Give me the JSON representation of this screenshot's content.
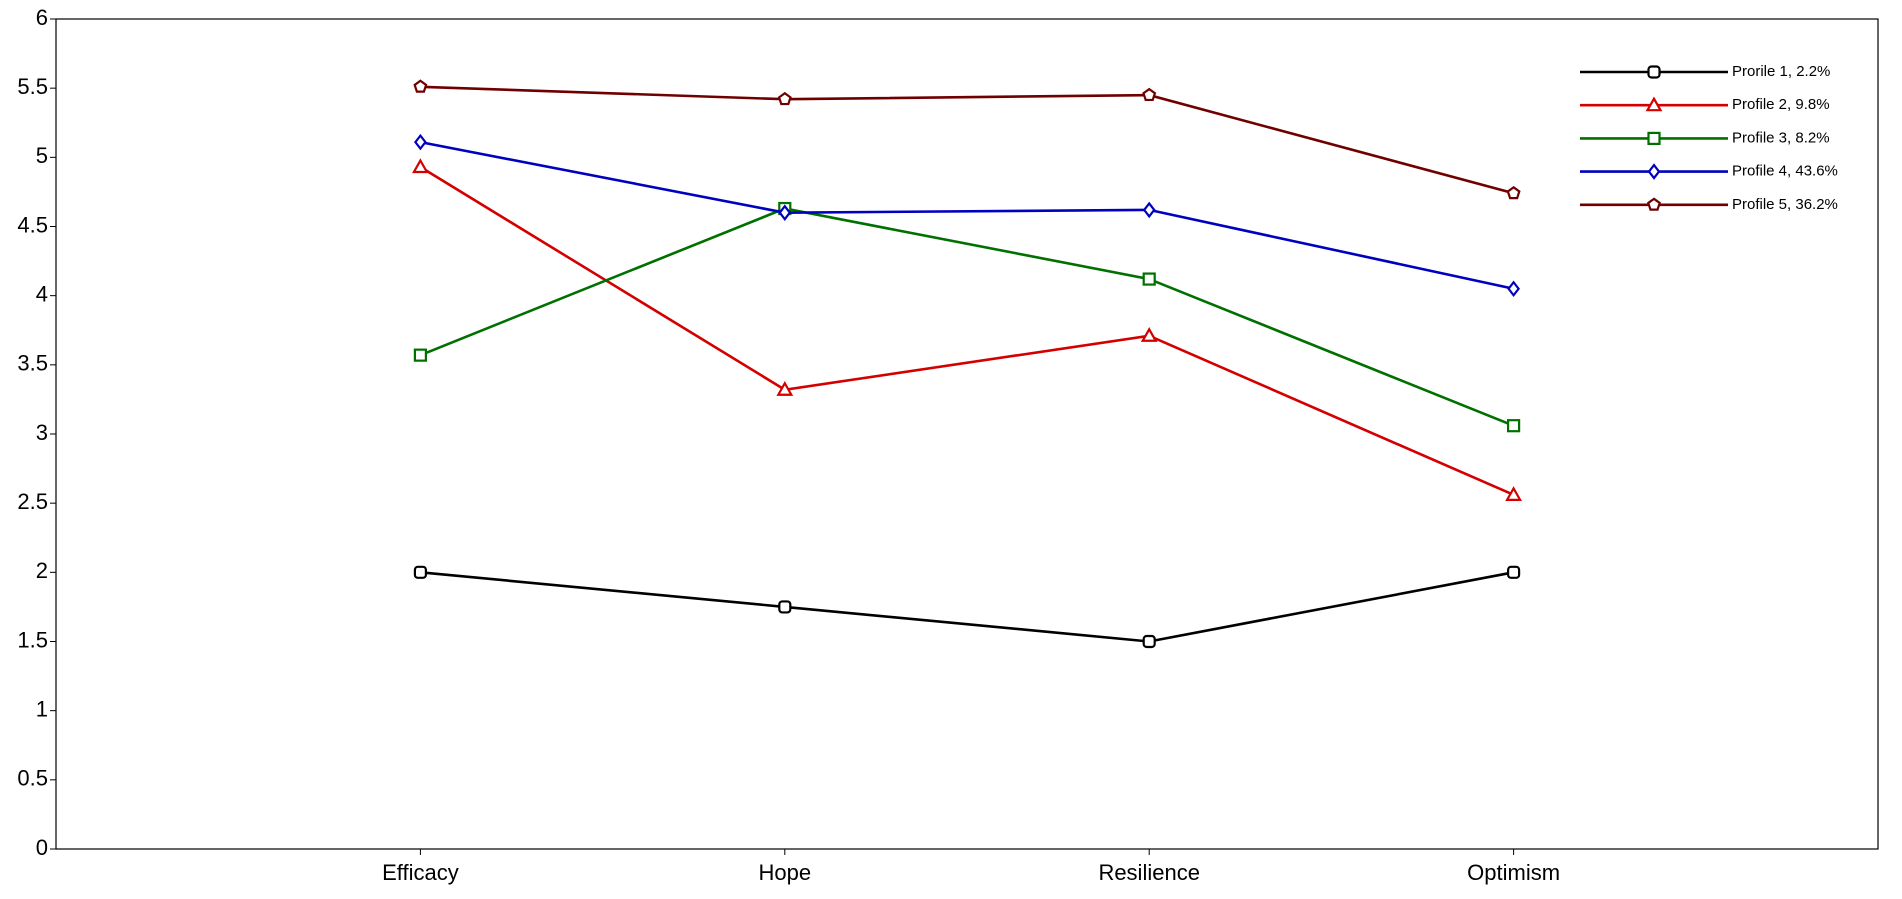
{
  "chart_data": {
    "type": "line",
    "categories": [
      "Efficacy",
      "Hope",
      "Resilience",
      "Optimism"
    ],
    "series": [
      {
        "name": "Prorile 1, 2.2%",
        "color": "#000000",
        "marker": "roundsquare",
        "values": [
          2.0,
          1.75,
          1.5,
          2.0
        ]
      },
      {
        "name": "Profile 2, 9.8%",
        "color": "#d40000",
        "marker": "triangle",
        "values": [
          4.93,
          3.32,
          3.71,
          2.56
        ]
      },
      {
        "name": "Profile 3, 8.2%",
        "color": "#007000",
        "marker": "square",
        "values": [
          3.57,
          4.63,
          4.12,
          3.06
        ]
      },
      {
        "name": "Profile 4, 43.6%",
        "color": "#0000c0",
        "marker": "diamond",
        "values": [
          5.11,
          4.6,
          4.62,
          4.05
        ]
      },
      {
        "name": "Profile 5, 36.2%",
        "color": "#700000",
        "marker": "pentagon",
        "values": [
          5.51,
          5.42,
          5.45,
          4.74
        ]
      }
    ],
    "ylim": [
      0,
      6
    ],
    "yticks": [
      0,
      0.5,
      1,
      1.5,
      2,
      2.5,
      3,
      3.5,
      4,
      4.5,
      5,
      5.5,
      6
    ],
    "grid": false,
    "legend": "upper right"
  }
}
